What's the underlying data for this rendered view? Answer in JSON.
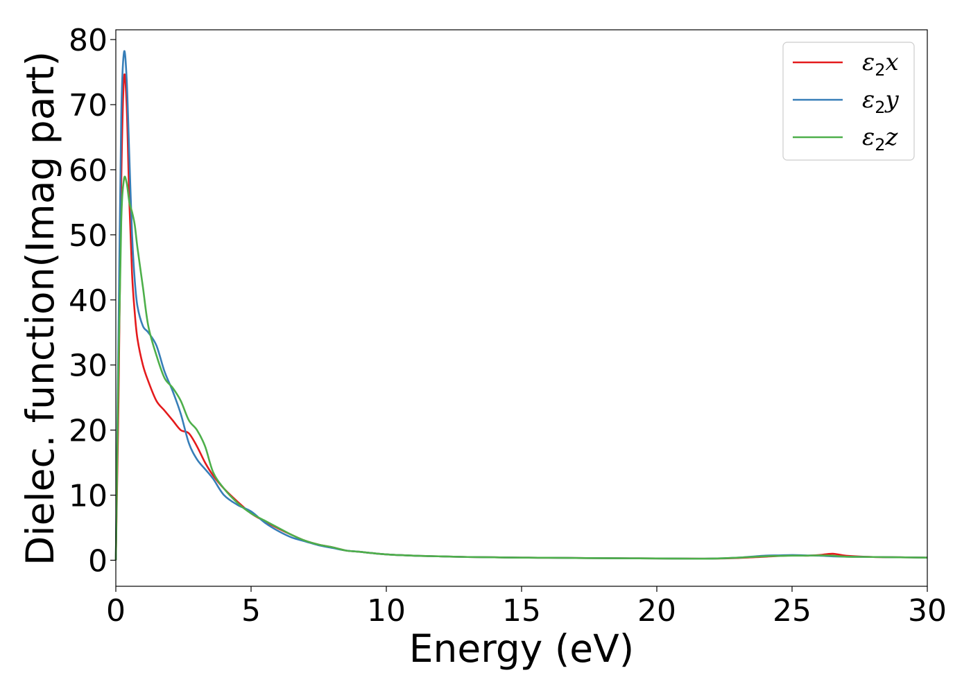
{
  "chart_data": {
    "type": "line",
    "xlabel": "Energy (eV)",
    "ylabel": "Dielec. function(Imag part)",
    "xlim": [
      0,
      30
    ],
    "ylim": [
      -4,
      81.5
    ],
    "xticks": [
      0,
      5,
      10,
      15,
      20,
      25,
      30
    ],
    "yticks": [
      0,
      10,
      20,
      30,
      40,
      50,
      60,
      70,
      80
    ],
    "grid": false,
    "legend_position": "top-right",
    "series": [
      {
        "name": "ε2x",
        "label_main": "ε",
        "label_sub": "2",
        "label_tail": "x",
        "color": "#e41a1c",
        "x": [
          0,
          0.1,
          0.2,
          0.3,
          0.4,
          0.5,
          0.6,
          0.7,
          0.8,
          1.0,
          1.2,
          1.5,
          1.8,
          2.1,
          2.4,
          2.7,
          3.0,
          3.3,
          3.6,
          4.0,
          4.5,
          5.0,
          5.5,
          6.0,
          6.5,
          7.0,
          7.5,
          8.0,
          8.5,
          9.0,
          10,
          11,
          12,
          13,
          14,
          15,
          16,
          17,
          18,
          19,
          20,
          21,
          22,
          23,
          24,
          25,
          25.5,
          26,
          26.5,
          27,
          28,
          29,
          30
        ],
        "y": [
          0,
          25,
          58,
          74,
          70,
          55,
          44,
          38,
          34,
          30,
          27.5,
          24.5,
          23,
          21.5,
          20,
          19.5,
          17.5,
          15,
          13,
          11,
          9,
          7.2,
          6,
          4.9,
          3.9,
          3.0,
          2.4,
          2.0,
          1.5,
          1.3,
          0.9,
          0.7,
          0.6,
          0.5,
          0.45,
          0.4,
          0.38,
          0.35,
          0.32,
          0.3,
          0.28,
          0.25,
          0.25,
          0.35,
          0.55,
          0.75,
          0.7,
          0.8,
          1.0,
          0.7,
          0.5,
          0.45,
          0.4
        ]
      },
      {
        "name": "ε2y",
        "label_main": "ε",
        "label_sub": "2",
        "label_tail": "y",
        "color": "#377eb8",
        "x": [
          0,
          0.1,
          0.2,
          0.3,
          0.4,
          0.5,
          0.6,
          0.7,
          0.8,
          1.0,
          1.2,
          1.5,
          1.8,
          2.1,
          2.4,
          2.7,
          3.0,
          3.3,
          3.6,
          4.0,
          4.5,
          5.0,
          5.5,
          6.0,
          6.5,
          7.0,
          7.5,
          8.0,
          8.5,
          9.0,
          10,
          11,
          12,
          13,
          14,
          15,
          16,
          17,
          18,
          19,
          20,
          21,
          22,
          23,
          24,
          24.5,
          25,
          25.5,
          26,
          26.5,
          27,
          28,
          29,
          30
        ],
        "y": [
          0,
          35,
          68,
          78,
          74,
          62,
          50,
          43,
          39,
          36,
          35,
          33,
          29,
          26,
          22.5,
          18,
          15.5,
          14,
          12.5,
          10,
          8.5,
          7.5,
          5.8,
          4.5,
          3.5,
          2.9,
          2.3,
          1.9,
          1.5,
          1.3,
          0.9,
          0.7,
          0.6,
          0.5,
          0.45,
          0.4,
          0.38,
          0.35,
          0.32,
          0.3,
          0.28,
          0.25,
          0.25,
          0.4,
          0.7,
          0.75,
          0.8,
          0.75,
          0.7,
          0.6,
          0.55,
          0.5,
          0.45,
          0.4
        ]
      },
      {
        "name": "ε2z",
        "label_main": "ε",
        "label_sub": "2",
        "label_tail": "z",
        "color": "#4daf4a",
        "x": [
          0,
          0.1,
          0.2,
          0.3,
          0.4,
          0.5,
          0.6,
          0.7,
          0.8,
          1.0,
          1.2,
          1.5,
          1.8,
          2.1,
          2.4,
          2.7,
          3.0,
          3.3,
          3.6,
          4.0,
          4.5,
          5.0,
          5.5,
          6.0,
          6.5,
          7.0,
          7.5,
          8.0,
          8.5,
          9.0,
          10,
          11,
          12,
          13,
          14,
          15,
          16,
          17,
          18,
          19,
          20,
          21,
          22,
          23,
          24,
          25,
          25.5,
          26,
          26.5,
          27,
          28,
          29,
          30
        ],
        "y": [
          0,
          30,
          52,
          58.5,
          58,
          55,
          53.5,
          51.5,
          48,
          42,
          36,
          31.5,
          28,
          26.5,
          24.5,
          21.5,
          20,
          17.5,
          13.5,
          11,
          8.8,
          7.2,
          6.1,
          5.0,
          3.9,
          3.0,
          2.4,
          2.0,
          1.5,
          1.3,
          0.9,
          0.7,
          0.6,
          0.5,
          0.45,
          0.4,
          0.38,
          0.35,
          0.32,
          0.3,
          0.28,
          0.25,
          0.25,
          0.4,
          0.6,
          0.7,
          0.7,
          0.75,
          0.7,
          0.55,
          0.5,
          0.45,
          0.4
        ]
      }
    ]
  }
}
